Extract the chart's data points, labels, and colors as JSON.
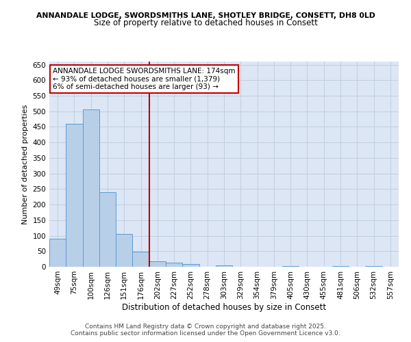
{
  "title_line1": "ANNANDALE LODGE, SWORDSMITHS LANE, SHOTLEY BRIDGE, CONSETT, DH8 0LD",
  "title_line2": "Size of property relative to detached houses in Consett",
  "xlabel": "Distribution of detached houses by size in Consett",
  "ylabel": "Number of detached properties",
  "categories": [
    "49sqm",
    "75sqm",
    "100sqm",
    "126sqm",
    "151sqm",
    "176sqm",
    "202sqm",
    "227sqm",
    "252sqm",
    "278sqm",
    "303sqm",
    "329sqm",
    "354sqm",
    "379sqm",
    "405sqm",
    "430sqm",
    "455sqm",
    "481sqm",
    "506sqm",
    "532sqm",
    "557sqm"
  ],
  "values": [
    90,
    460,
    507,
    240,
    105,
    48,
    18,
    14,
    9,
    0,
    4,
    0,
    0,
    0,
    3,
    0,
    0,
    3,
    0,
    3,
    0
  ],
  "bar_color": "#b8cfe8",
  "bar_edgecolor": "#5b9bd5",
  "vline_x_index": 5,
  "vline_color": "#c00000",
  "annotation_text": "ANNANDALE LODGE SWORDSMITHS LANE: 174sqm\n← 93% of detached houses are smaller (1,379)\n6% of semi-detached houses are larger (93) →",
  "annotation_box_color": "#ffffff",
  "annotation_box_edgecolor": "#c00000",
  "ylim": [
    0,
    660
  ],
  "yticks": [
    0,
    50,
    100,
    150,
    200,
    250,
    300,
    350,
    400,
    450,
    500,
    550,
    600,
    650
  ],
  "background_color": "#ffffff",
  "plot_bg_color": "#dce6f5",
  "grid_color": "#c0cfe0",
  "footnote": "Contains HM Land Registry data © Crown copyright and database right 2025.\nContains public sector information licensed under the Open Government Licence v3.0.",
  "title1_fontsize": 7.8,
  "title2_fontsize": 8.5,
  "xlabel_fontsize": 8.5,
  "ylabel_fontsize": 8.0,
  "tick_fontsize": 7.5,
  "annot_fontsize": 7.5,
  "footnote_fontsize": 6.5
}
